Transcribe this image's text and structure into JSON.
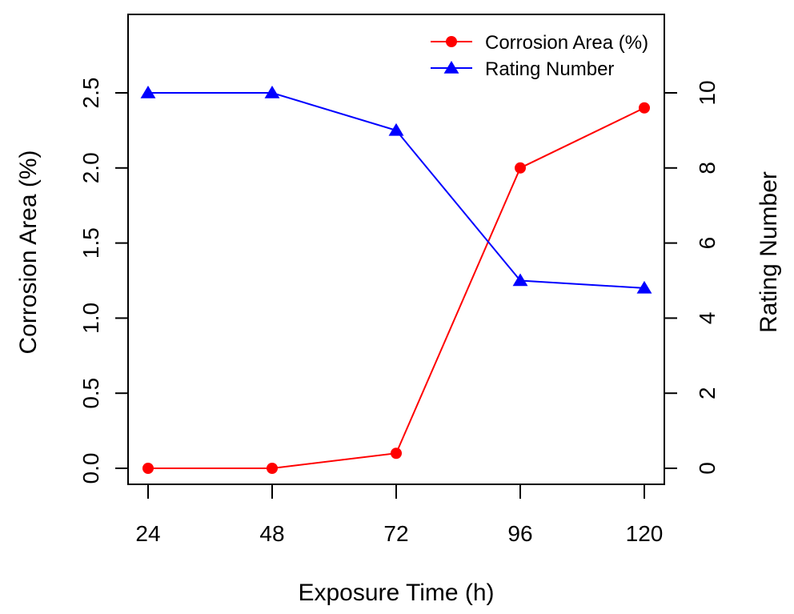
{
  "chart_data": {
    "type": "line",
    "x": [
      24,
      48,
      72,
      96,
      120
    ],
    "xlabel": "Exposure Time (h)",
    "ylabel": "Corrosion Area (%)",
    "y2label": "Rating Number",
    "xlim": [
      24,
      120
    ],
    "ylim": [
      0,
      2.5
    ],
    "y2lim": [
      0,
      10
    ],
    "xticks": [
      "24",
      "48",
      "72",
      "96",
      "120"
    ],
    "yticks": [
      "0.0",
      "0.5",
      "1.0",
      "1.5",
      "2.0",
      "2.5"
    ],
    "y2ticks": [
      "0",
      "2",
      "4",
      "6",
      "8",
      "10"
    ],
    "grid": false,
    "legend_position": "top-right",
    "series": [
      {
        "name": "Corrosion Area (%)",
        "axis": "left",
        "color": "#ff0000",
        "marker": "circle",
        "values": [
          0,
          0,
          0.1,
          2.0,
          2.4
        ]
      },
      {
        "name": "Rating Number",
        "axis": "right",
        "color": "#0000ff",
        "marker": "triangle",
        "values": [
          10,
          10,
          9,
          5,
          4.8
        ]
      }
    ]
  }
}
